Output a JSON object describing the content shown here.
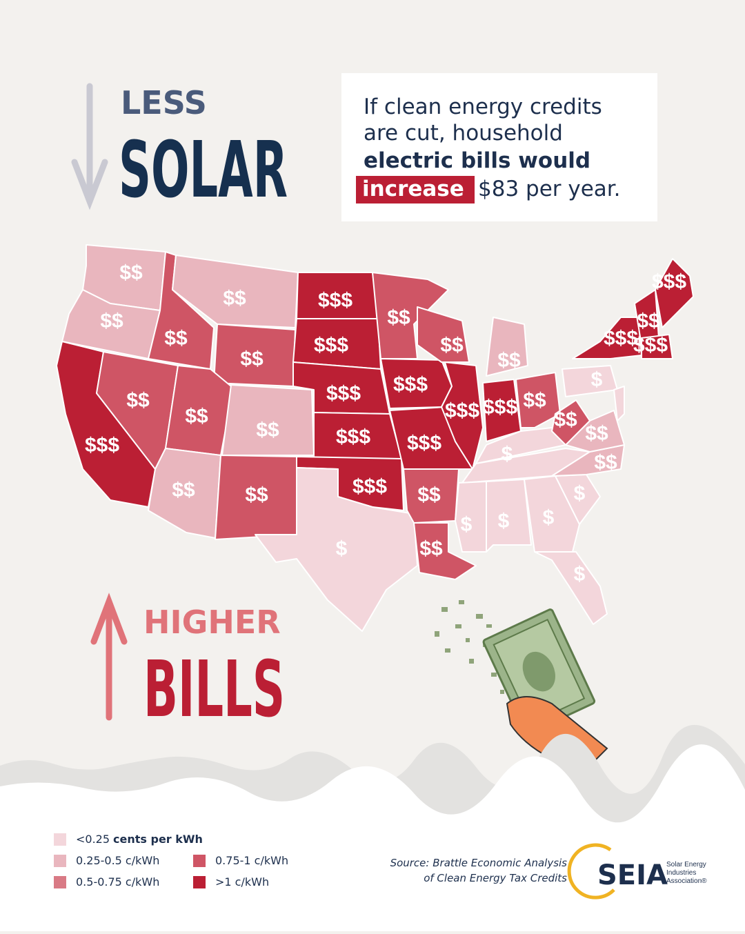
{
  "heading": {
    "top_small": "LESS",
    "top_big": "SOLAR",
    "bottom_small": "HIGHER",
    "bottom_big": "BILLS"
  },
  "callout": {
    "line1": "If clean energy credits",
    "line2": "are cut, household",
    "line3": "electric bills would",
    "highlight": "increase",
    "line4_rest": "$83 per year."
  },
  "map": {
    "states": [
      {
        "label": "$$",
        "color": "#e9b6be"
      },
      {
        "label": "$$",
        "color": "#e9b6be"
      },
      {
        "label": "$$$",
        "color": "#bb1f34"
      },
      {
        "label": "$$",
        "color": "#cf5565"
      },
      {
        "label": "$$",
        "color": "#cf5565"
      },
      {
        "label": "$$",
        "color": "#e9b6be"
      },
      {
        "label": "$$",
        "color": "#cf5565"
      },
      {
        "label": "$$",
        "color": "#cf5565"
      },
      {
        "label": "$$",
        "color": "#e9b6be"
      },
      {
        "label": "$$",
        "color": "#e9b6be"
      },
      {
        "label": "$$",
        "color": "#cf5565"
      },
      {
        "label": "$$$",
        "color": "#bb1f34"
      },
      {
        "label": "$$$",
        "color": "#bb1f34"
      },
      {
        "label": "$$$",
        "color": "#bb1f34"
      },
      {
        "label": "$$$",
        "color": "#bb1f34"
      },
      {
        "label": "$$$",
        "color": "#bb1f34"
      },
      {
        "label": "$",
        "color": "#f3d6db"
      },
      {
        "label": "$$",
        "color": "#cf5565"
      },
      {
        "label": "$$$",
        "color": "#bb1f34"
      },
      {
        "label": "$$$",
        "color": "#bb1f34"
      },
      {
        "label": "$$",
        "color": "#cf5565"
      },
      {
        "label": "$$",
        "color": "#cf5565"
      },
      {
        "label": "$$",
        "color": "#cf5565"
      },
      {
        "label": "$$$",
        "color": "#bb1f34"
      },
      {
        "label": "$$",
        "color": "#e9b6be"
      },
      {
        "label": "$$$",
        "color": "#bb1f34"
      },
      {
        "label": "$$",
        "color": "#cf5565"
      },
      {
        "label": "$",
        "color": "#f3d6db"
      },
      {
        "label": null,
        "color": "#f3d6db"
      },
      {
        "label": "$",
        "color": "#f3d6db"
      },
      {
        "label": "$",
        "color": "#f3d6db"
      },
      {
        "label": "$",
        "color": "#f3d6db"
      },
      {
        "label": "$",
        "color": "#f3d6db"
      },
      {
        "label": "$",
        "color": "#f3d6db"
      },
      {
        "label": "$$",
        "color": "#e9b6be"
      },
      {
        "label": "$$",
        "color": "#e9b6be"
      },
      {
        "label": "$$",
        "color": "#cf5565"
      },
      {
        "label": "$",
        "color": "#f3d6db"
      },
      {
        "label": "$$$",
        "color": "#bb1f34"
      },
      {
        "label": "$$",
        "color": "#bb1f34"
      },
      {
        "label": "$$$",
        "color": "#bb1f34"
      },
      {
        "label": "$$$",
        "color": "#bb1f34"
      },
      {
        "label": null,
        "color": "#f3d6db"
      }
    ]
  },
  "legend": [
    {
      "label": "<0.25",
      "label_bold": "cents per kWh",
      "color": "#f3d6db"
    },
    {
      "label": "0.25-0.5 c/kWh",
      "color": "#e9b6be"
    },
    {
      "label": "0.5-0.75 c/kWh",
      "color": "#d97a85"
    },
    {
      "label": "0.75-1 c/kWh",
      "color": "#cf5565"
    },
    {
      "label": ">1 c/kWh",
      "color": "#bb1f34"
    }
  ],
  "source": {
    "line1": "Source: Brattle Economic Analysis",
    "line2": "of Clean Energy Tax Credits"
  },
  "logo": {
    "mark": "SEIA",
    "line1": "Solar Energy",
    "line2": "Industries",
    "line3": "Association®"
  }
}
